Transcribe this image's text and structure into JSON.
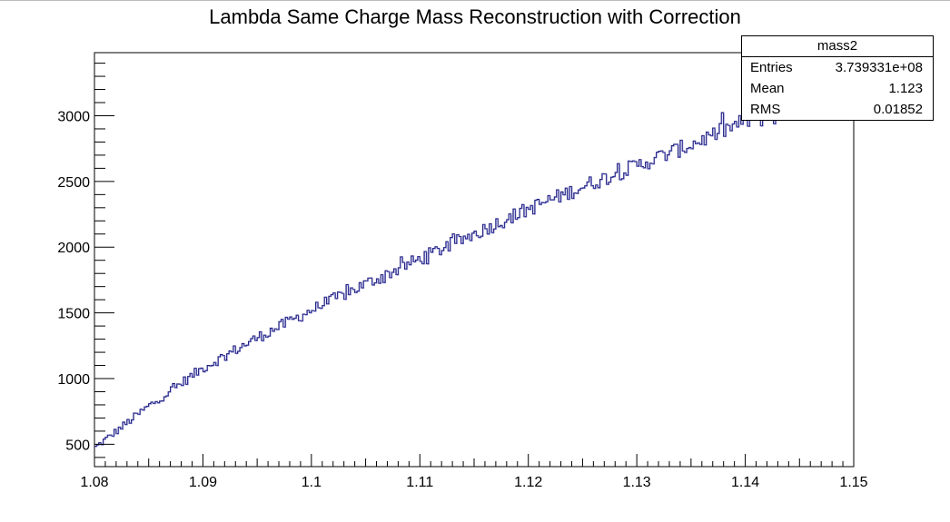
{
  "chart_data": {
    "type": "line",
    "title": "Lambda Same Charge Mass Reconstruction with Correction",
    "xlabel": "",
    "ylabel": "",
    "xlim": [
      1.08,
      1.15
    ],
    "ylim": [
      330,
      3480
    ],
    "x_ticks": [
      "1.08",
      "1.09",
      "1.1",
      "1.11",
      "1.12",
      "1.13",
      "1.14",
      "1.15"
    ],
    "y_ticks": [
      "500",
      "1000",
      "1500",
      "2000",
      "2500",
      "3000"
    ],
    "grid": false,
    "line_color": "#1a1a7a",
    "fill_color": "#7777cc",
    "series": [
      {
        "values_anchor_x": [
          1.08,
          1.085,
          1.09,
          1.095,
          1.1,
          1.105,
          1.11,
          1.115,
          1.12,
          1.125,
          1.13,
          1.135,
          1.14,
          1.1436
        ],
        "values_anchor_y": [
          470,
          790,
          1080,
          1310,
          1520,
          1720,
          1910,
          2100,
          2290,
          2460,
          2620,
          2780,
          2960,
          3010
        ]
      }
    ],
    "stats": {
      "name": "mass2",
      "entries_label": "Entries",
      "entries": "3.739331e+08",
      "mean_label": "Mean",
      "mean": "1.123",
      "rms_label": "RMS",
      "rms": "0.01852"
    }
  }
}
